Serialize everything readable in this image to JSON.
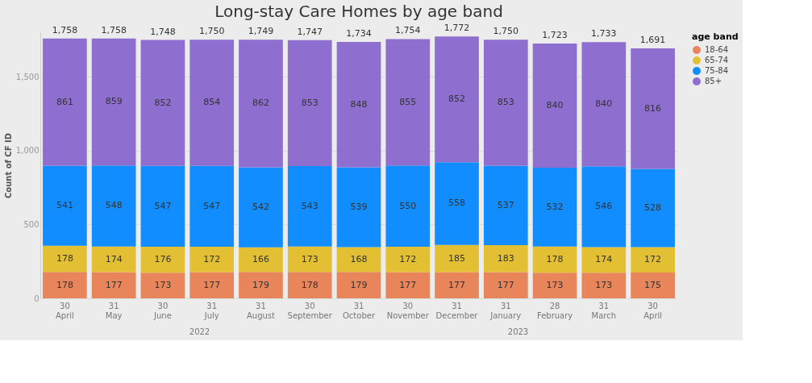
{
  "chart_data": {
    "type": "bar",
    "stacked": true,
    "title": "Long-stay Care Homes by age band",
    "ylabel": "Count of CF ID",
    "legend_title": "age band",
    "legend": "top right",
    "grid": "y",
    "data_labels": true,
    "categories": [
      "30\nApril",
      "31\nMay",
      "30\nJune",
      "31\nJuly",
      "31\nAugust",
      "30\nSeptember",
      "31\nOctober",
      "30\nNovember",
      "31\nDecember",
      "31\nJanuary",
      "28\nFebruary",
      "31\nMarch",
      "30\nApril"
    ],
    "series": [
      {
        "name": "18-64",
        "color": "#e8855a",
        "values": [
          178,
          177,
          173,
          177,
          179,
          178,
          179,
          177,
          177,
          177,
          173,
          173,
          175
        ]
      },
      {
        "name": "65-74",
        "color": "#e3c033",
        "values": [
          178,
          174,
          176,
          172,
          166,
          173,
          168,
          172,
          185,
          183,
          178,
          174,
          172
        ]
      },
      {
        "name": "75-84",
        "color": "#118dff",
        "values": [
          541,
          548,
          547,
          547,
          542,
          543,
          539,
          550,
          558,
          537,
          532,
          546,
          528
        ]
      },
      {
        "name": "85+",
        "color": "#8e6fd0",
        "values": [
          861,
          859,
          852,
          854,
          862,
          853,
          848,
          855,
          852,
          853,
          840,
          840,
          816
        ]
      }
    ],
    "totals": [
      "1,758",
      "1,758",
      "1,748",
      "1,750",
      "1,749",
      "1,747",
      "1,734",
      "1,754",
      "1,772",
      "1,750",
      "1,723",
      "1,733",
      "1,691"
    ],
    "ylim": [
      0,
      1800
    ],
    "yticks": [
      0,
      500,
      {
        "value": 1000,
        "label": "1,000"
      },
      {
        "value": 1500,
        "label": "1,500"
      }
    ],
    "annotations": [
      "2022",
      "2023"
    ]
  }
}
